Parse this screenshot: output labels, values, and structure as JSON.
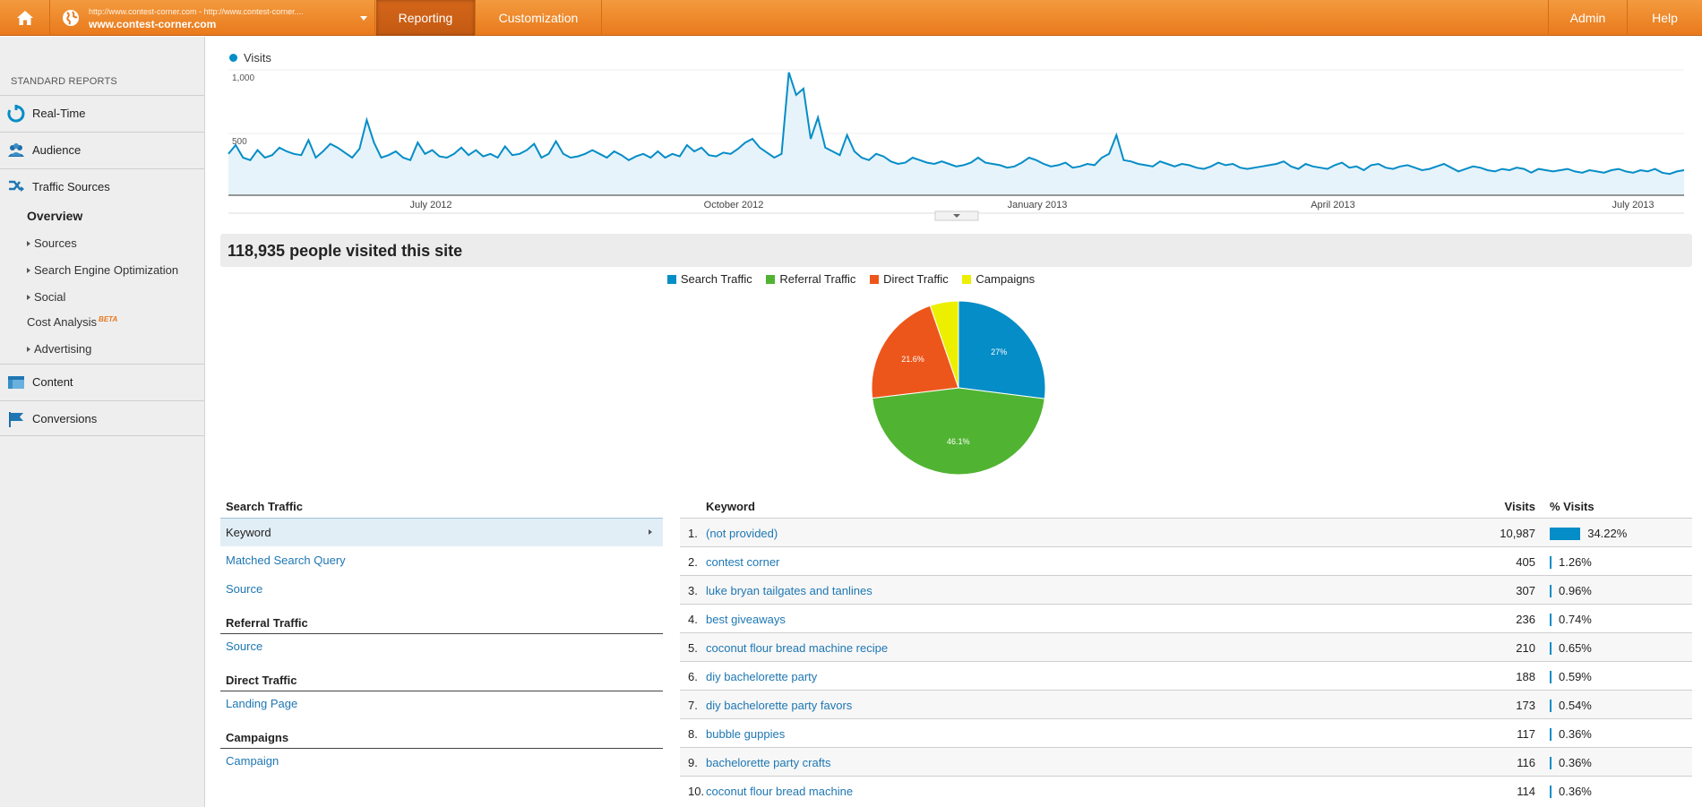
{
  "topbar": {
    "site_url": "http://www.contest-corner.com - http://www.contest-corner....",
    "site_name": "www.contest-corner.com",
    "tabs": [
      "Reporting",
      "Customization"
    ],
    "right": [
      "Admin",
      "Help"
    ]
  },
  "sidebar": {
    "heading": "STANDARD REPORTS",
    "realtime": "Real-Time",
    "audience": "Audience",
    "traffic_sources": "Traffic Sources",
    "overview": "Overview",
    "sources": "Sources",
    "seo": "Search Engine Optimization",
    "social": "Social",
    "cost_analysis": "Cost Analysis",
    "beta": "BETA",
    "advertising": "Advertising",
    "content": "Content",
    "conversions": "Conversions"
  },
  "chart": {
    "legend": "Visits",
    "y_ticks": [
      "1,000",
      "500"
    ],
    "x_ticks": [
      "July 2012",
      "October 2012",
      "January 2013",
      "April 2013",
      "July 2013"
    ]
  },
  "chart_data": {
    "type": "area",
    "series": [
      {
        "name": "Visits",
        "color": "#058dc7"
      }
    ],
    "ylim": [
      0,
      1000
    ],
    "x_range": [
      "2012-05",
      "2013-07"
    ],
    "shape": [
      330,
      400,
      300,
      280,
      360,
      300,
      320,
      380,
      350,
      330,
      320,
      440,
      300,
      350,
      410,
      380,
      340,
      300,
      370,
      600,
      420,
      300,
      320,
      350,
      300,
      280,
      420,
      330,
      360,
      310,
      300,
      330,
      380,
      320,
      360,
      310,
      330,
      300,
      390,
      320,
      330,
      360,
      410,
      300,
      330,
      430,
      330,
      300,
      310,
      330,
      360,
      330,
      300,
      350,
      320,
      280,
      310,
      330,
      300,
      350,
      300,
      330,
      310,
      400,
      350,
      380,
      320,
      310,
      340,
      330,
      370,
      420,
      450,
      380,
      340,
      300,
      330,
      980,
      800,
      850,
      450,
      620,
      380,
      350,
      320,
      480,
      350,
      300,
      280,
      330,
      310,
      270,
      250,
      260,
      300,
      280,
      260,
      250,
      270,
      250,
      230,
      240,
      260,
      300,
      260,
      250,
      240,
      220,
      230,
      260,
      300,
      280,
      250,
      230,
      240,
      260,
      220,
      230,
      250,
      240,
      300,
      330,
      480,
      280,
      270,
      250,
      240,
      230,
      270,
      250,
      230,
      250,
      240,
      220,
      210,
      230,
      260,
      240,
      250,
      220,
      210,
      220,
      230,
      240,
      250,
      270,
      230,
      210,
      250,
      230,
      220,
      210,
      240,
      260,
      220,
      230,
      200,
      240,
      250,
      220,
      210,
      230,
      240,
      220,
      200,
      210,
      230,
      250,
      220,
      190,
      210,
      230,
      220,
      200,
      190,
      210,
      200,
      220,
      210,
      180,
      210,
      200,
      190,
      200,
      210,
      190,
      180,
      200,
      190,
      180,
      200,
      210,
      190,
      180,
      200,
      190,
      210,
      180,
      170,
      190,
      200
    ]
  },
  "summary": "118,935 people visited this site",
  "pie": {
    "type": "pie",
    "legend": [
      {
        "name": "Search Traffic",
        "color": "#058dc7"
      },
      {
        "name": "Referral Traffic",
        "color": "#50b432"
      },
      {
        "name": "Direct Traffic",
        "color": "#ed561b"
      },
      {
        "name": "Campaigns",
        "color": "#edef00"
      }
    ],
    "values": [
      27.0,
      46.1,
      21.6,
      5.3
    ],
    "labels": [
      "27%",
      "46.1%",
      "21.6%",
      ""
    ]
  },
  "nav_table": {
    "search_heading": "Search Traffic",
    "keyword": "Keyword",
    "matched": "Matched Search Query",
    "source1": "Source",
    "referral_heading": "Referral Traffic",
    "source2": "Source",
    "direct_heading": "Direct Traffic",
    "landing": "Landing Page",
    "campaigns_heading": "Campaigns",
    "campaign": "Campaign"
  },
  "kw_table": {
    "headers": {
      "keyword": "Keyword",
      "visits": "Visits",
      "pct": "% Visits"
    },
    "rows": [
      {
        "n": "1.",
        "kw": "(not provided)",
        "visits": "10,987",
        "pct": "34.22%",
        "share": 0.3422
      },
      {
        "n": "2.",
        "kw": "contest corner",
        "visits": "405",
        "pct": "1.26%",
        "share": 0.0126
      },
      {
        "n": "3.",
        "kw": "luke bryan tailgates and tanlines",
        "visits": "307",
        "pct": "0.96%",
        "share": 0.0096
      },
      {
        "n": "4.",
        "kw": "best giveaways",
        "visits": "236",
        "pct": "0.74%",
        "share": 0.0074
      },
      {
        "n": "5.",
        "kw": "coconut flour bread machine recipe",
        "visits": "210",
        "pct": "0.65%",
        "share": 0.0065
      },
      {
        "n": "6.",
        "kw": "diy bachelorette party",
        "visits": "188",
        "pct": "0.59%",
        "share": 0.0059
      },
      {
        "n": "7.",
        "kw": "diy bachelorette party favors",
        "visits": "173",
        "pct": "0.54%",
        "share": 0.0054
      },
      {
        "n": "8.",
        "kw": "bubble guppies",
        "visits": "117",
        "pct": "0.36%",
        "share": 0.0036
      },
      {
        "n": "9.",
        "kw": "bachelorette party crafts",
        "visits": "116",
        "pct": "0.36%",
        "share": 0.0036
      },
      {
        "n": "10.",
        "kw": "coconut flour bread machine",
        "visits": "114",
        "pct": "0.36%",
        "share": 0.0036
      }
    ]
  }
}
